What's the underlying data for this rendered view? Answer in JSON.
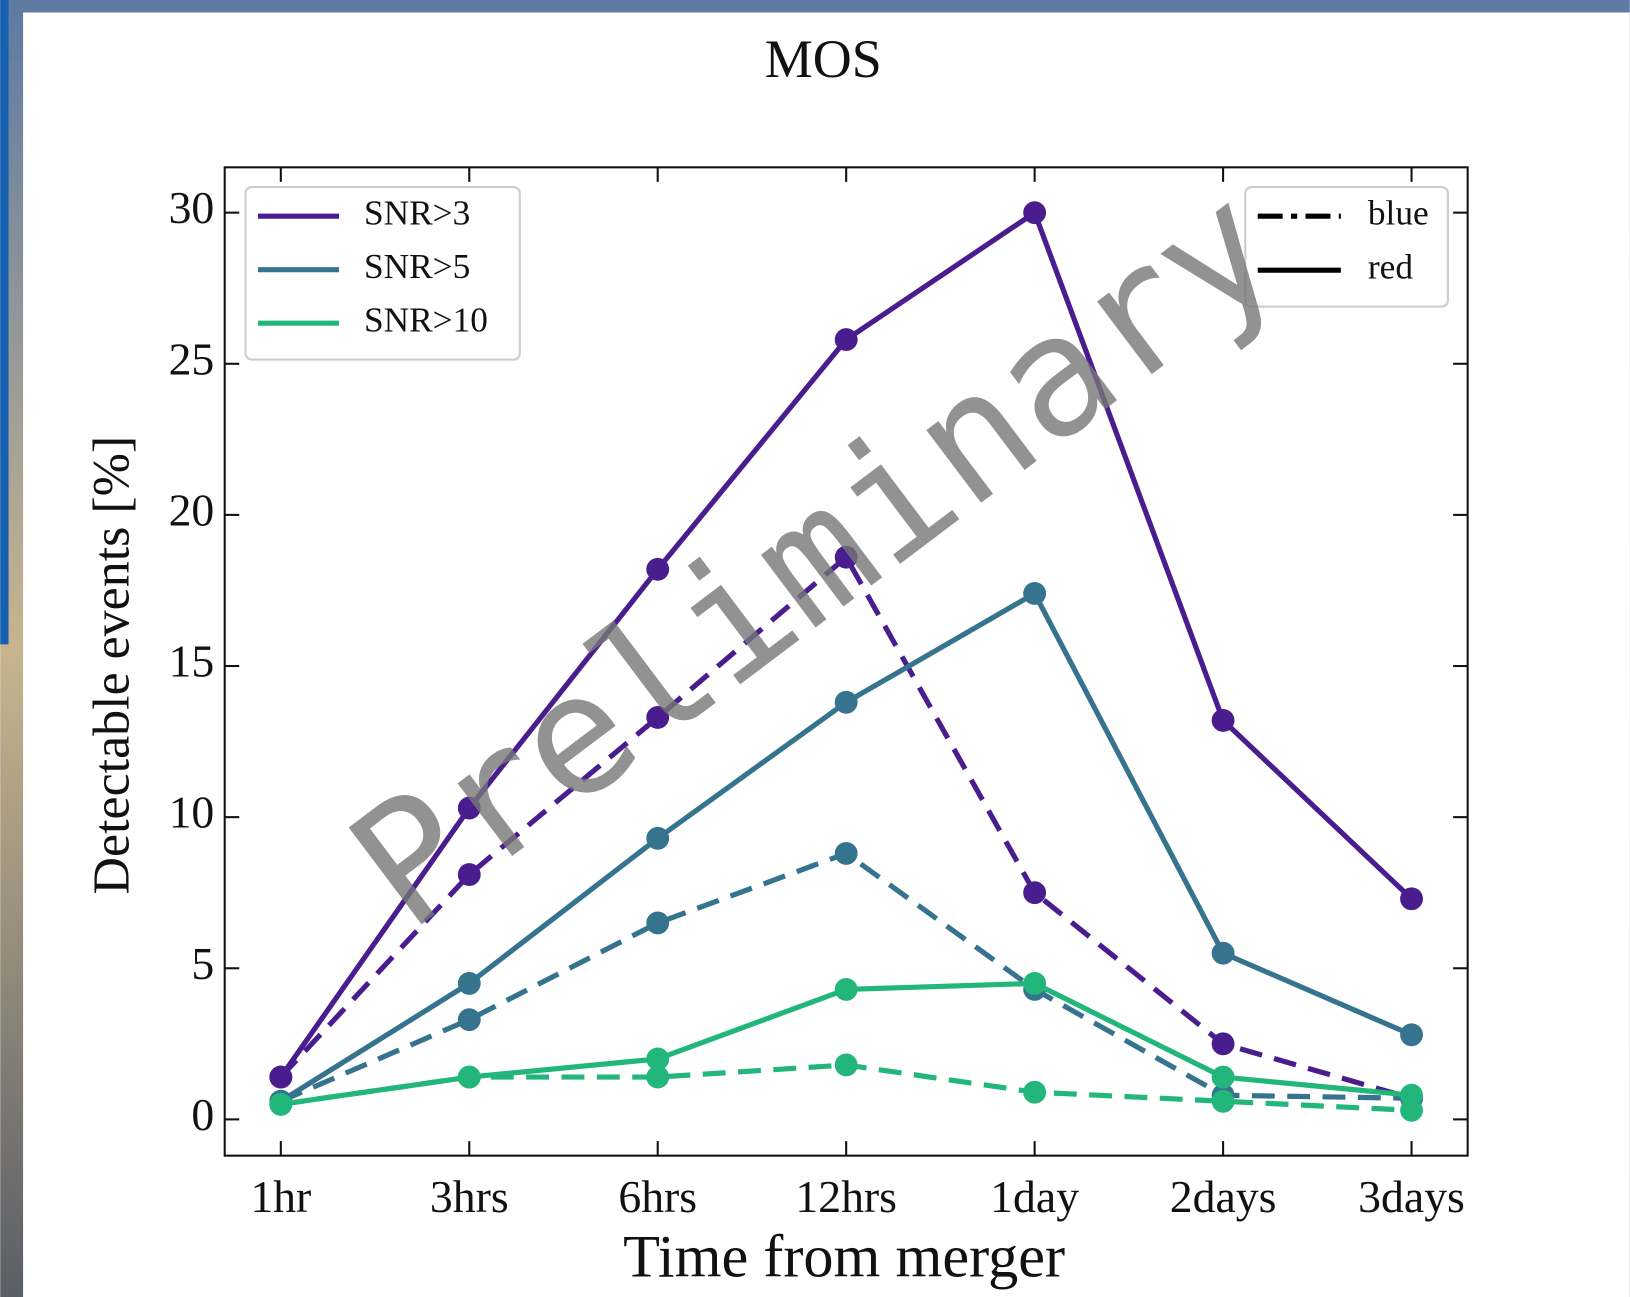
{
  "chart_data": {
    "type": "line",
    "title": "MOS",
    "x_label": "Time from merger",
    "y_label": "Detectable events [%]",
    "watermark": "Preliminary",
    "categories": [
      "1hr",
      "3hrs",
      "6hrs",
      "12hrs",
      "1day",
      "2days",
      "3days"
    ],
    "styles": [
      {
        "name": "blue",
        "dashed": true
      },
      {
        "name": "red",
        "dashed": false
      }
    ],
    "series": [
      {
        "name": "SNR>3",
        "color": "#4a1d8f",
        "values": [
          [
            1.4,
            8.1,
            13.3,
            18.6,
            7.5,
            2.5,
            0.7
          ],
          [
            1.4,
            10.3,
            18.2,
            25.8,
            30,
            13.2,
            7.3
          ]
        ]
      },
      {
        "name": "SNR>5",
        "color": "#35738f",
        "values": [
          [
            0.6,
            3.3,
            6.5,
            8.8,
            4.3,
            0.8,
            0.7
          ],
          [
            0.6,
            4.5,
            9.3,
            13.8,
            17.4,
            5.5,
            2.8
          ]
        ]
      },
      {
        "name": "SNR>10",
        "color": "#22b67a",
        "values": [
          [
            0.5,
            1.4,
            1.4,
            1.8,
            0.9,
            0.6,
            0.3
          ],
          [
            0.5,
            1.4,
            2.0,
            4.3,
            4.5,
            1.4,
            0.8
          ]
        ]
      }
    ],
    "ylim": [
      -1.2,
      31.5
    ],
    "yticks": [
      0,
      5,
      10,
      15,
      20,
      25,
      30
    ]
  }
}
